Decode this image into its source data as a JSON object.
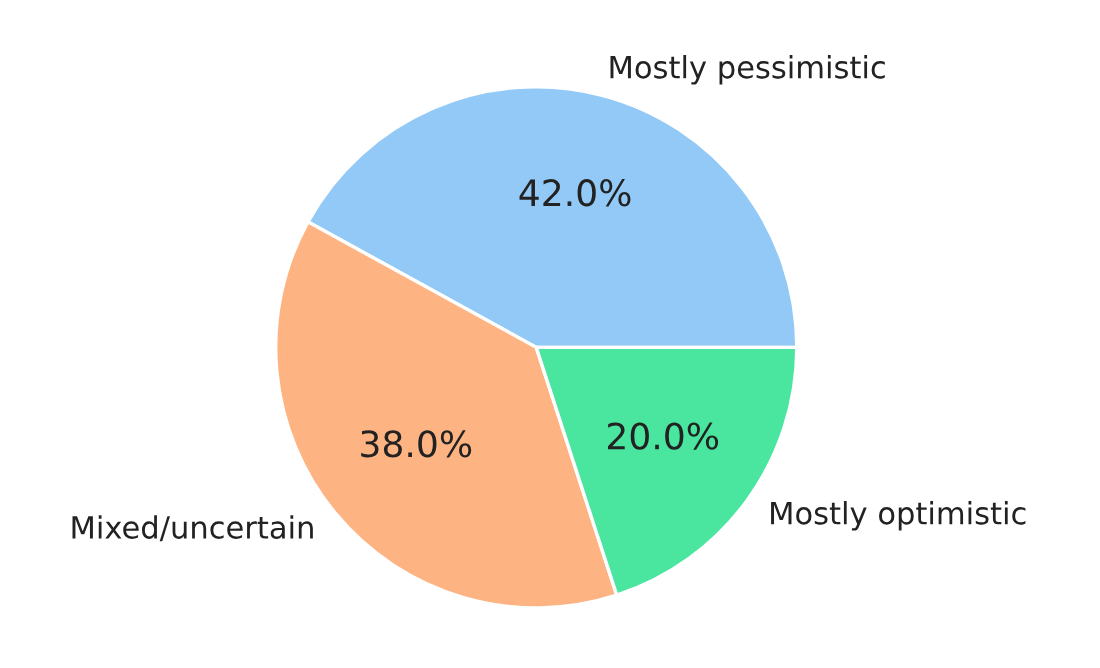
{
  "chart_data": {
    "type": "pie",
    "categories": [
      "Mostly pessimistic",
      "Mixed/uncertain",
      "Mostly optimistic"
    ],
    "values": [
      42,
      38,
      20
    ],
    "value_labels": [
      "42.0%",
      "38.0%",
      "20.0%"
    ],
    "colors": [
      "#92c9f6",
      "#feb482",
      "#4ae59f"
    ]
  }
}
